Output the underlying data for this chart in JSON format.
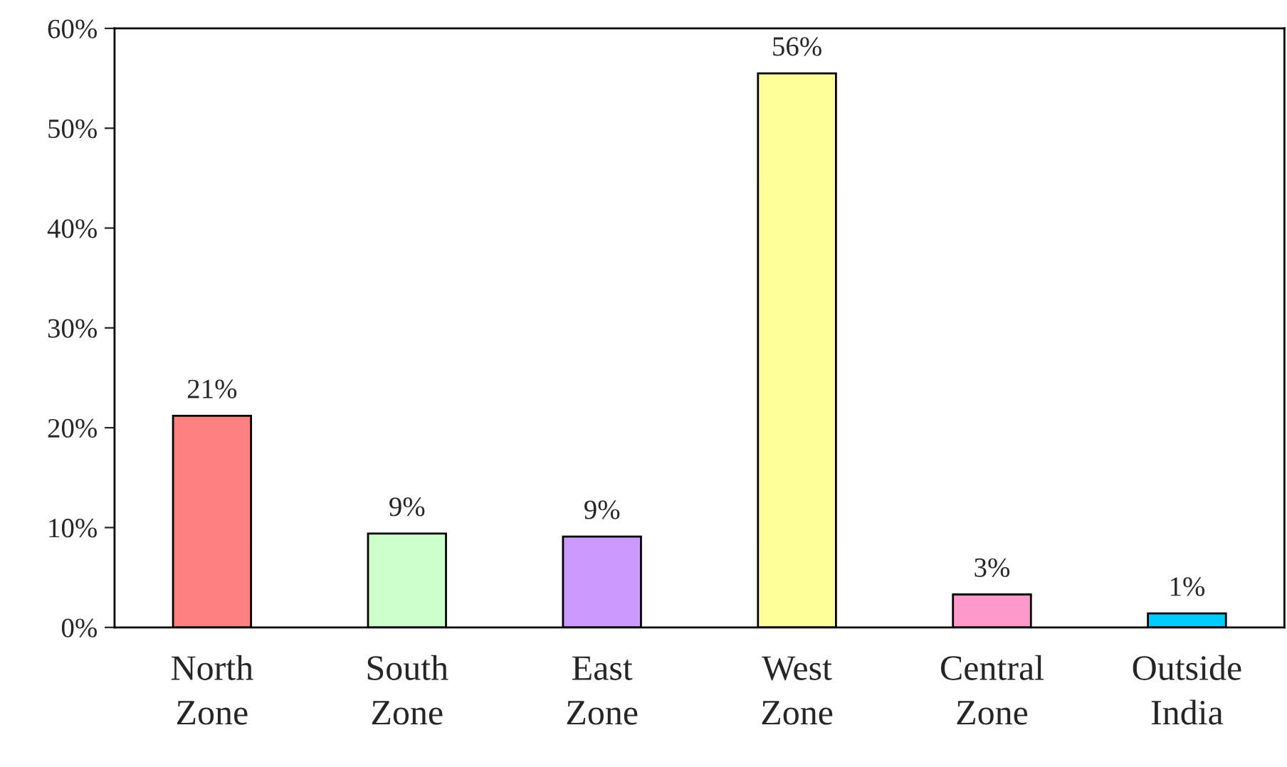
{
  "chart_data": {
    "type": "bar",
    "categories": [
      "North\nZone",
      "South\nZone",
      "East\nZone",
      "West\nZone",
      "Central\nZone",
      "Outside\nIndia"
    ],
    "values": [
      21.2,
      9.4,
      9.1,
      55.5,
      3.3,
      1.4
    ],
    "value_labels": [
      "21%",
      "9%",
      "9%",
      "56%",
      "3%",
      "1%"
    ],
    "colors": [
      "#ff8080",
      "#ccffcc",
      "#cc99ff",
      "#ffff99",
      "#ff99cc",
      "#00ccff"
    ],
    "ylim": [
      0,
      60
    ],
    "yticks": [
      {
        "value": 0,
        "label": "0%"
      },
      {
        "value": 10,
        "label": "10%"
      },
      {
        "value": 20,
        "label": "20%"
      },
      {
        "value": 30,
        "label": "30%"
      },
      {
        "value": 40,
        "label": "40%"
      },
      {
        "value": 50,
        "label": "50%"
      },
      {
        "value": 60,
        "label": "60%"
      }
    ],
    "grid": false,
    "legend": false
  }
}
